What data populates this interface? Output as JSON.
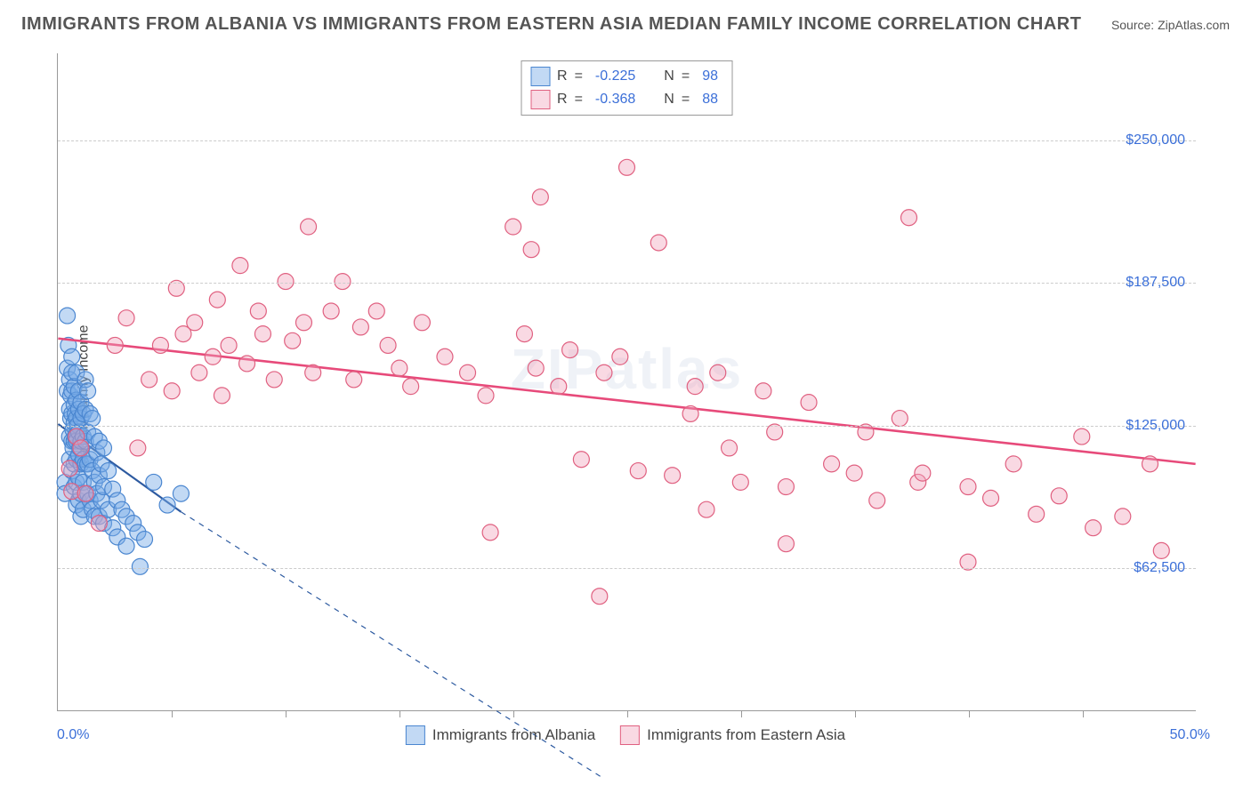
{
  "header": {
    "title": "IMMIGRANTS FROM ALBANIA VS IMMIGRANTS FROM EASTERN ASIA MEDIAN FAMILY INCOME CORRELATION CHART",
    "source_prefix": "Source: ",
    "source_name": "ZipAtlas.com"
  },
  "chart": {
    "type": "scatter",
    "ylabel": "Median Family Income",
    "watermark": "ZIPatlas",
    "background_color": "#ffffff",
    "grid_color": "#cccccc",
    "axis_color": "#999999",
    "label_color": "#444444",
    "value_color": "#3b6fd8",
    "xlim": [
      0,
      50
    ],
    "ylim": [
      0,
      288000
    ],
    "xticks_minor": [
      5,
      10,
      15,
      20,
      25,
      30,
      35,
      40,
      45
    ],
    "xtick_labels": {
      "left": "0.0%",
      "right": "50.0%"
    },
    "yticks": [
      {
        "v": 62500,
        "label": "$62,500"
      },
      {
        "v": 125000,
        "label": "$125,000"
      },
      {
        "v": 187500,
        "label": "$187,500"
      },
      {
        "v": 250000,
        "label": "$250,000"
      }
    ],
    "marker_radius": 9,
    "marker_stroke_width": 1.2,
    "series": [
      {
        "name": "Immigrants from Albania",
        "fill": "rgba(120,170,230,0.45)",
        "stroke": "#4a86d0",
        "line_color": "#2d5aa0",
        "line_width": 2.2,
        "trend": {
          "x1": 0,
          "y1": 125500,
          "x2": 5.4,
          "y2": 87000,
          "dash_ext_x2": 24,
          "dash_ext_y2": -30000
        },
        "R": "-0.225",
        "N": "98",
        "points": [
          [
            0.3,
            100000
          ],
          [
            0.3,
            95000
          ],
          [
            0.4,
            173000
          ],
          [
            0.4,
            150000
          ],
          [
            0.4,
            140000
          ],
          [
            0.45,
            160000
          ],
          [
            0.5,
            145000
          ],
          [
            0.5,
            132000
          ],
          [
            0.5,
            120000
          ],
          [
            0.5,
            110000
          ],
          [
            0.55,
            138000
          ],
          [
            0.55,
            128000
          ],
          [
            0.6,
            155000
          ],
          [
            0.6,
            148000
          ],
          [
            0.6,
            140000
          ],
          [
            0.6,
            130000
          ],
          [
            0.6,
            118000
          ],
          [
            0.6,
            105000
          ],
          [
            0.65,
            123000
          ],
          [
            0.65,
            115000
          ],
          [
            0.7,
            142000
          ],
          [
            0.7,
            134000
          ],
          [
            0.7,
            126000
          ],
          [
            0.7,
            118000
          ],
          [
            0.7,
            108000
          ],
          [
            0.7,
            98000
          ],
          [
            0.75,
            130000
          ],
          [
            0.75,
            120000
          ],
          [
            0.8,
            148000
          ],
          [
            0.8,
            136000
          ],
          [
            0.8,
            128000
          ],
          [
            0.8,
            118000
          ],
          [
            0.8,
            110000
          ],
          [
            0.8,
            100000
          ],
          [
            0.8,
            90000
          ],
          [
            0.85,
            125000
          ],
          [
            0.9,
            140000
          ],
          [
            0.9,
            132000
          ],
          [
            0.9,
            122000
          ],
          [
            0.9,
            112000
          ],
          [
            0.9,
            102000
          ],
          [
            0.9,
            92000
          ],
          [
            0.95,
            115000
          ],
          [
            1.0,
            135000
          ],
          [
            1.0,
            128000
          ],
          [
            1.0,
            118000
          ],
          [
            1.0,
            108000
          ],
          [
            1.0,
            95000
          ],
          [
            1.0,
            85000
          ],
          [
            1.1,
            130000
          ],
          [
            1.1,
            120000
          ],
          [
            1.1,
            110000
          ],
          [
            1.1,
            100000
          ],
          [
            1.1,
            88000
          ],
          [
            1.2,
            145000
          ],
          [
            1.2,
            132000
          ],
          [
            1.2,
            118000
          ],
          [
            1.2,
            108000
          ],
          [
            1.2,
            95000
          ],
          [
            1.3,
            140000
          ],
          [
            1.3,
            122000
          ],
          [
            1.3,
            108000
          ],
          [
            1.3,
            95000
          ],
          [
            1.4,
            130000
          ],
          [
            1.4,
            110000
          ],
          [
            1.4,
            92000
          ],
          [
            1.5,
            128000
          ],
          [
            1.5,
            105000
          ],
          [
            1.5,
            88000
          ],
          [
            1.6,
            120000
          ],
          [
            1.6,
            100000
          ],
          [
            1.6,
            85000
          ],
          [
            1.7,
            113000
          ],
          [
            1.7,
            95000
          ],
          [
            1.8,
            118000
          ],
          [
            1.8,
            103000
          ],
          [
            1.8,
            85000
          ],
          [
            1.9,
            108000
          ],
          [
            1.9,
            92000
          ],
          [
            2.0,
            115000
          ],
          [
            2.0,
            98000
          ],
          [
            2.0,
            82000
          ],
          [
            2.2,
            105000
          ],
          [
            2.2,
            88000
          ],
          [
            2.4,
            97000
          ],
          [
            2.4,
            80000
          ],
          [
            2.6,
            92000
          ],
          [
            2.6,
            76000
          ],
          [
            2.8,
            88000
          ],
          [
            3.0,
            85000
          ],
          [
            3.0,
            72000
          ],
          [
            3.3,
            82000
          ],
          [
            3.5,
            78000
          ],
          [
            3.6,
            63000
          ],
          [
            3.8,
            75000
          ],
          [
            4.2,
            100000
          ],
          [
            4.8,
            90000
          ],
          [
            5.4,
            95000
          ]
        ]
      },
      {
        "name": "Immigrants from Eastern Asia",
        "fill": "rgba(240,160,185,0.40)",
        "stroke": "#e06080",
        "line_color": "#e74a7a",
        "line_width": 2.6,
        "trend": {
          "x1": 0,
          "y1": 163000,
          "x2": 50,
          "y2": 108000
        },
        "R": "-0.368",
        "N": "88",
        "points": [
          [
            0.5,
            106000
          ],
          [
            0.6,
            96000
          ],
          [
            0.8,
            120000
          ],
          [
            1.0,
            115000
          ],
          [
            1.2,
            95000
          ],
          [
            1.8,
            82000
          ],
          [
            2.5,
            160000
          ],
          [
            3.0,
            172000
          ],
          [
            3.5,
            115000
          ],
          [
            4.0,
            145000
          ],
          [
            4.5,
            160000
          ],
          [
            5.0,
            140000
          ],
          [
            5.2,
            185000
          ],
          [
            5.5,
            165000
          ],
          [
            6.0,
            170000
          ],
          [
            6.2,
            148000
          ],
          [
            6.8,
            155000
          ],
          [
            7.0,
            180000
          ],
          [
            7.2,
            138000
          ],
          [
            7.5,
            160000
          ],
          [
            8.0,
            195000
          ],
          [
            8.3,
            152000
          ],
          [
            8.8,
            175000
          ],
          [
            9.0,
            165000
          ],
          [
            9.5,
            145000
          ],
          [
            10.0,
            188000
          ],
          [
            10.3,
            162000
          ],
          [
            10.8,
            170000
          ],
          [
            11.0,
            212000
          ],
          [
            11.2,
            148000
          ],
          [
            12.0,
            175000
          ],
          [
            12.5,
            188000
          ],
          [
            13.0,
            145000
          ],
          [
            13.3,
            168000
          ],
          [
            14.0,
            175000
          ],
          [
            14.5,
            160000
          ],
          [
            15.0,
            150000
          ],
          [
            15.5,
            142000
          ],
          [
            16.0,
            170000
          ],
          [
            17.0,
            155000
          ],
          [
            18.0,
            148000
          ],
          [
            18.8,
            138000
          ],
          [
            19.0,
            78000
          ],
          [
            20.0,
            212000
          ],
          [
            20.5,
            165000
          ],
          [
            20.8,
            202000
          ],
          [
            21.0,
            150000
          ],
          [
            21.2,
            225000
          ],
          [
            22.0,
            142000
          ],
          [
            22.5,
            158000
          ],
          [
            23.0,
            110000
          ],
          [
            23.8,
            50000
          ],
          [
            24.0,
            148000
          ],
          [
            24.7,
            155000
          ],
          [
            25.0,
            238000
          ],
          [
            25.5,
            105000
          ],
          [
            26.4,
            205000
          ],
          [
            27.0,
            103000
          ],
          [
            27.8,
            130000
          ],
          [
            28.0,
            142000
          ],
          [
            28.5,
            88000
          ],
          [
            29.0,
            148000
          ],
          [
            29.5,
            115000
          ],
          [
            30.0,
            100000
          ],
          [
            31.0,
            140000
          ],
          [
            31.5,
            122000
          ],
          [
            32.0,
            98000
          ],
          [
            32.0,
            73000
          ],
          [
            33.0,
            135000
          ],
          [
            34.0,
            108000
          ],
          [
            35.0,
            104000
          ],
          [
            35.5,
            122000
          ],
          [
            36.0,
            92000
          ],
          [
            37.0,
            128000
          ],
          [
            37.4,
            216000
          ],
          [
            37.8,
            100000
          ],
          [
            38.0,
            104000
          ],
          [
            40.0,
            98000
          ],
          [
            40.0,
            65000
          ],
          [
            41.0,
            93000
          ],
          [
            42.0,
            108000
          ],
          [
            43.0,
            86000
          ],
          [
            44.0,
            94000
          ],
          [
            45.0,
            120000
          ],
          [
            45.5,
            80000
          ],
          [
            46.8,
            85000
          ],
          [
            48.5,
            70000
          ],
          [
            48.0,
            108000
          ]
        ]
      }
    ],
    "legend_top_label_R": "R",
    "legend_top_label_N": "N",
    "legend_top_eq": "="
  }
}
